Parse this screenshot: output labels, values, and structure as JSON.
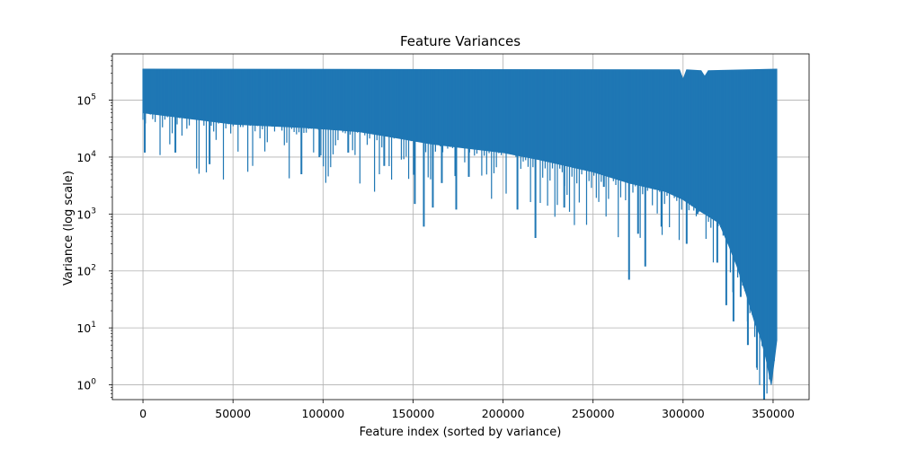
{
  "chart_data": {
    "type": "line",
    "title": "Feature Variances",
    "xlabel": "Feature index (sorted by variance)",
    "ylabel": "Variance (log scale)",
    "xlim": [
      -17000,
      370000
    ],
    "ylim": [
      0.55,
      650000
    ],
    "yscale": "log",
    "grid": true,
    "x_ticks": [
      0,
      50000,
      100000,
      150000,
      200000,
      250000,
      300000,
      350000
    ],
    "x_tick_labels": [
      "0",
      "50000",
      "100000",
      "150000",
      "200000",
      "250000",
      "300000",
      "350000"
    ],
    "y_ticks": [
      1,
      10,
      100,
      1000,
      10000,
      100000
    ],
    "y_tick_labels": [
      [
        "10",
        "0"
      ],
      [
        "10",
        "1"
      ],
      [
        "10",
        "2"
      ],
      [
        "10",
        "3"
      ],
      [
        "10",
        "4"
      ],
      [
        "10",
        "5"
      ]
    ],
    "series": [
      {
        "color": "#1f77b4",
        "x_count": 352000,
        "upper_envelope": [
          [
            0,
            350000
          ],
          [
            298000,
            340000
          ],
          [
            300000,
            230000
          ],
          [
            302000,
            340000
          ],
          [
            310000,
            330000
          ],
          [
            312000,
            260000
          ],
          [
            314000,
            330000
          ],
          [
            352000,
            350000
          ]
        ],
        "lower_envelope": [
          [
            0,
            60000
          ],
          [
            20000,
            50000
          ],
          [
            50000,
            38000
          ],
          [
            90000,
            33000
          ],
          [
            120000,
            28000
          ],
          [
            140000,
            22000
          ],
          [
            160000,
            17000
          ],
          [
            200000,
            12000
          ],
          [
            220000,
            9000
          ],
          [
            250000,
            5500
          ],
          [
            270000,
            3500
          ],
          [
            290000,
            2500
          ],
          [
            300000,
            1800
          ],
          [
            310000,
            1100
          ],
          [
            320000,
            700
          ],
          [
            325000,
            300
          ],
          [
            330000,
            120
          ],
          [
            335000,
            40
          ],
          [
            340000,
            12
          ],
          [
            343000,
            7
          ],
          [
            346000,
            3
          ],
          [
            349000,
            1
          ],
          [
            352000,
            6
          ]
        ],
        "dips": [
          [
            1000,
            12000
          ],
          [
            18000,
            12000
          ],
          [
            37000,
            7500
          ],
          [
            88000,
            5000
          ],
          [
            98000,
            10000
          ],
          [
            114000,
            12000
          ],
          [
            134000,
            7000
          ],
          [
            151000,
            1500
          ],
          [
            156000,
            600
          ],
          [
            161000,
            1300
          ],
          [
            166000,
            3500
          ],
          [
            174000,
            1200
          ],
          [
            181000,
            4500
          ],
          [
            208000,
            1200
          ],
          [
            218000,
            380
          ],
          [
            234000,
            1300
          ],
          [
            256000,
            3000
          ],
          [
            270000,
            70
          ],
          [
            275000,
            450
          ],
          [
            279000,
            120
          ],
          [
            288000,
            600
          ],
          [
            302000,
            300
          ],
          [
            308000,
            1000
          ],
          [
            319000,
            140
          ],
          [
            324000,
            25
          ],
          [
            328000,
            13
          ],
          [
            332000,
            35
          ],
          [
            336000,
            5
          ],
          [
            341000,
            2
          ],
          [
            345000,
            0.55
          ],
          [
            351000,
            6
          ]
        ]
      }
    ]
  }
}
